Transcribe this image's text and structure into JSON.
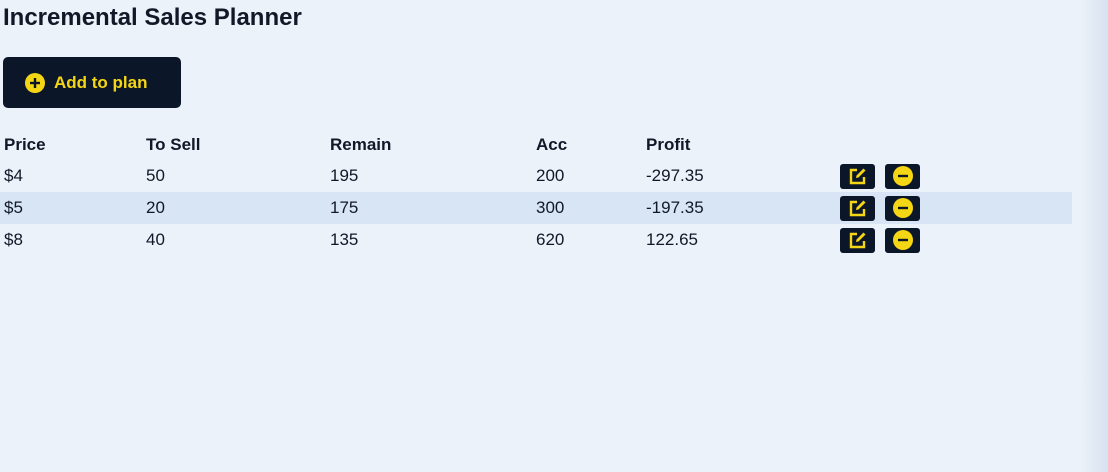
{
  "page": {
    "title": "Incremental Sales Planner"
  },
  "toolbar": {
    "add_label": "Add to plan",
    "add_icon": "plus-circle-icon"
  },
  "table": {
    "headers": {
      "price": "Price",
      "to_sell": "To Sell",
      "remain": "Remain",
      "acc": "Acc",
      "profit": "Profit"
    },
    "rows": [
      {
        "price": "$4",
        "to_sell": "50",
        "remain": "195",
        "acc": "200",
        "profit": "-297.35",
        "edit_icon": "edit-icon",
        "remove_icon": "minus-circle-icon"
      },
      {
        "price": "$5",
        "to_sell": "20",
        "remain": "175",
        "acc": "300",
        "profit": "-197.35",
        "edit_icon": "edit-icon",
        "remove_icon": "minus-circle-icon"
      },
      {
        "price": "$8",
        "to_sell": "40",
        "remain": "135",
        "acc": "620",
        "profit": "122.65",
        "edit_icon": "edit-icon",
        "remove_icon": "minus-circle-icon"
      }
    ]
  },
  "colors": {
    "background": "#ebf2fa",
    "button_bg": "#0b1729",
    "accent": "#f5d614",
    "row_alt": "#d7e5f4"
  }
}
